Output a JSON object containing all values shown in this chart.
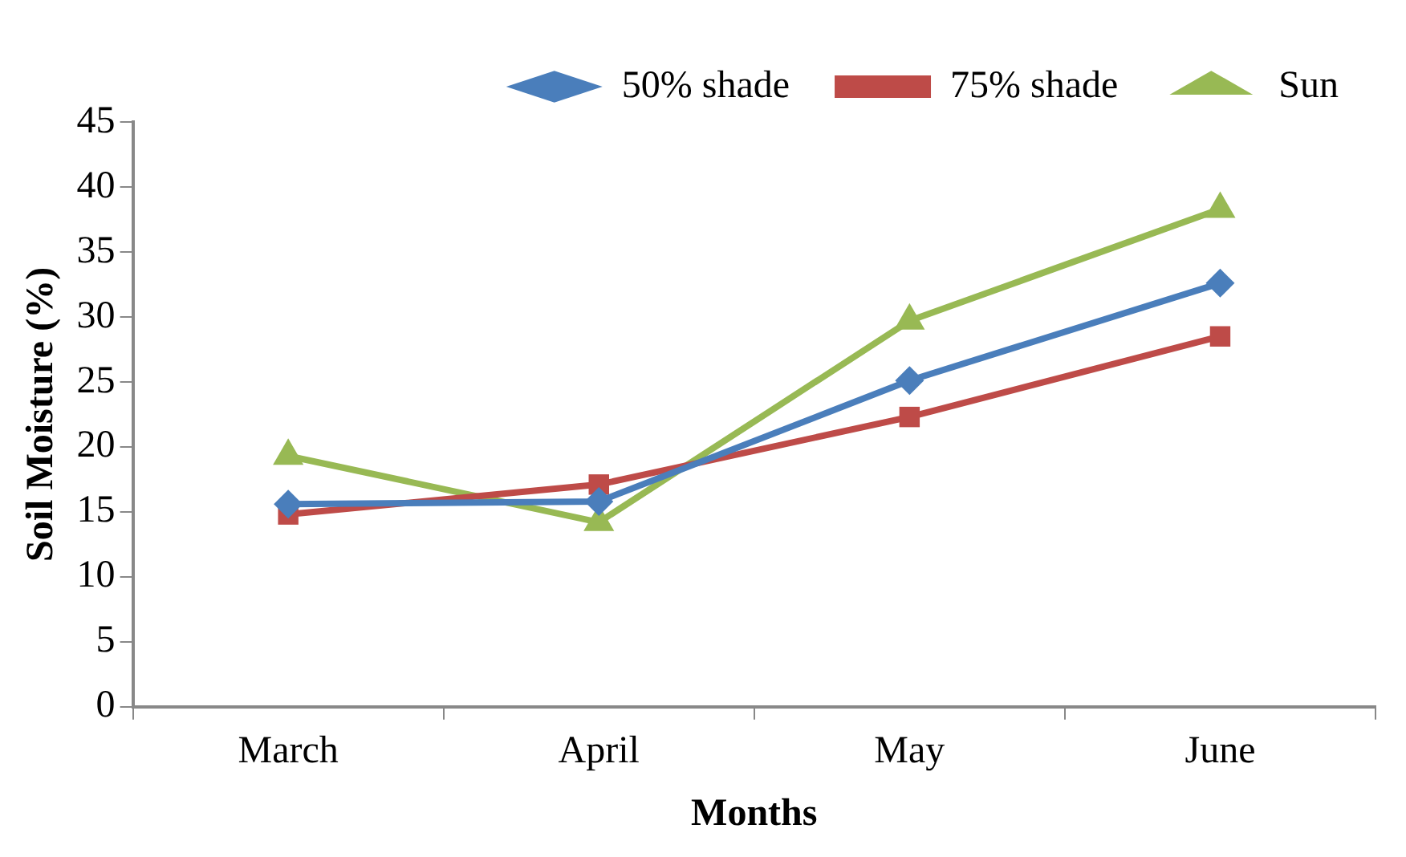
{
  "chart_data": {
    "type": "line",
    "xlabel": "Months",
    "ylabel": "Soil Moisture (%)",
    "categories": [
      "March",
      "April",
      "May",
      "June"
    ],
    "series": [
      {
        "name": "50% shade",
        "color": "#4a7ebb",
        "marker": "diamond",
        "values": [
          15.6,
          15.8,
          25.1,
          32.6
        ]
      },
      {
        "name": "75% shade",
        "color": "#be4b48",
        "marker": "square",
        "values": [
          14.8,
          17.1,
          22.3,
          28.5
        ]
      },
      {
        "name": "Sun",
        "color": "#98b954",
        "marker": "triangle",
        "values": [
          19.3,
          14.2,
          29.7,
          38.3
        ]
      }
    ],
    "ylim": [
      0,
      45
    ],
    "yticks": [
      0,
      5,
      10,
      15,
      20,
      25,
      30,
      35,
      40,
      45
    ],
    "grid": false,
    "legend": "top right"
  }
}
